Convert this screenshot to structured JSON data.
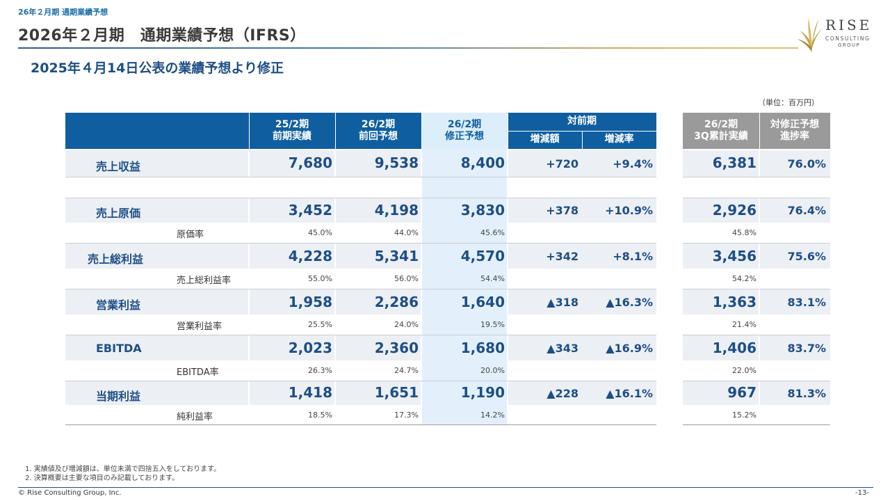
{
  "header": {
    "section": "26年２月期 通期業績予想",
    "title": "2026年２月期　通期業績予想（IFRS）",
    "subtitle": "2025年４月14日公表の業績予想より修正",
    "unit": "（単位：百万円）"
  },
  "logo": {
    "name": "RISE",
    "line2": "CONSULTING",
    "line3": "GROUP"
  },
  "table": {
    "headers": {
      "c1_l1": "25/2期",
      "c1_l2": "前期実績",
      "c2_l1": "26/2期",
      "c2_l2": "前回予想",
      "c3_l1": "26/2期",
      "c3_l2": "修正予想",
      "yoy": "対前期",
      "yoy_amt": "増減額",
      "yoy_rate": "増減率",
      "c6_l1": "26/2期",
      "c6_l2": "3Q累計実績",
      "c7_l1": "対修正予想",
      "c7_l2": "進捗率"
    },
    "rows": [
      {
        "label": "売上収益",
        "v1": "7,680",
        "v2": "9,538",
        "v3": "8,400",
        "d1": "+720",
        "d2": "+9.4%",
        "v6": "6,381",
        "v7": "76.0%"
      },
      {
        "label": "売上原価",
        "v1": "3,452",
        "v2": "4,198",
        "v3": "3,830",
        "d1": "+378",
        "d2": "+10.9%",
        "v6": "2,926",
        "v7": "76.4%"
      },
      {
        "label": "売上総利益",
        "v1": "4,228",
        "v2": "5,341",
        "v3": "4,570",
        "d1": "+342",
        "d2": "+8.1%",
        "v6": "3,456",
        "v7": "75.6%"
      },
      {
        "label": "営業利益",
        "v1": "1,958",
        "v2": "2,286",
        "v3": "1,640",
        "d1": "▲318",
        "d2": "▲16.3%",
        "v6": "1,363",
        "v7": "83.1%"
      },
      {
        "label": "EBITDA",
        "v1": "2,023",
        "v2": "2,360",
        "v3": "1,680",
        "d1": "▲343",
        "d2": "▲16.9%",
        "v6": "1,406",
        "v7": "83.7%"
      },
      {
        "label": "当期利益",
        "v1": "1,418",
        "v2": "1,651",
        "v3": "1,190",
        "d1": "▲228",
        "d2": "▲16.1%",
        "v6": "967",
        "v7": "81.3%"
      }
    ],
    "ratios": [
      {
        "label": "原価率",
        "v1": "45.0%",
        "v2": "44.0%",
        "v3": "45.6%",
        "v6": "45.8%"
      },
      {
        "label": "売上総利益率",
        "v1": "55.0%",
        "v2": "56.0%",
        "v3": "54.4%",
        "v6": "54.2%"
      },
      {
        "label": "営業利益率",
        "v1": "25.5%",
        "v2": "24.0%",
        "v3": "19.5%",
        "v6": "21.4%"
      },
      {
        "label": "EBITDA率",
        "v1": "26.3%",
        "v2": "24.7%",
        "v3": "20.0%",
        "v6": "22.0%"
      },
      {
        "label": "純利益率",
        "v1": "18.5%",
        "v2": "17.3%",
        "v3": "14.2%",
        "v6": "15.2%"
      }
    ]
  },
  "notes": [
    "1. 実績値及び増減額は、単位未満で四捨五入をしております。",
    "2. 決算概要は主要な項目のみ記載しております。"
  ],
  "footer": {
    "copyright": "© Rise Consulting Group, Inc.",
    "page": "-13-"
  }
}
